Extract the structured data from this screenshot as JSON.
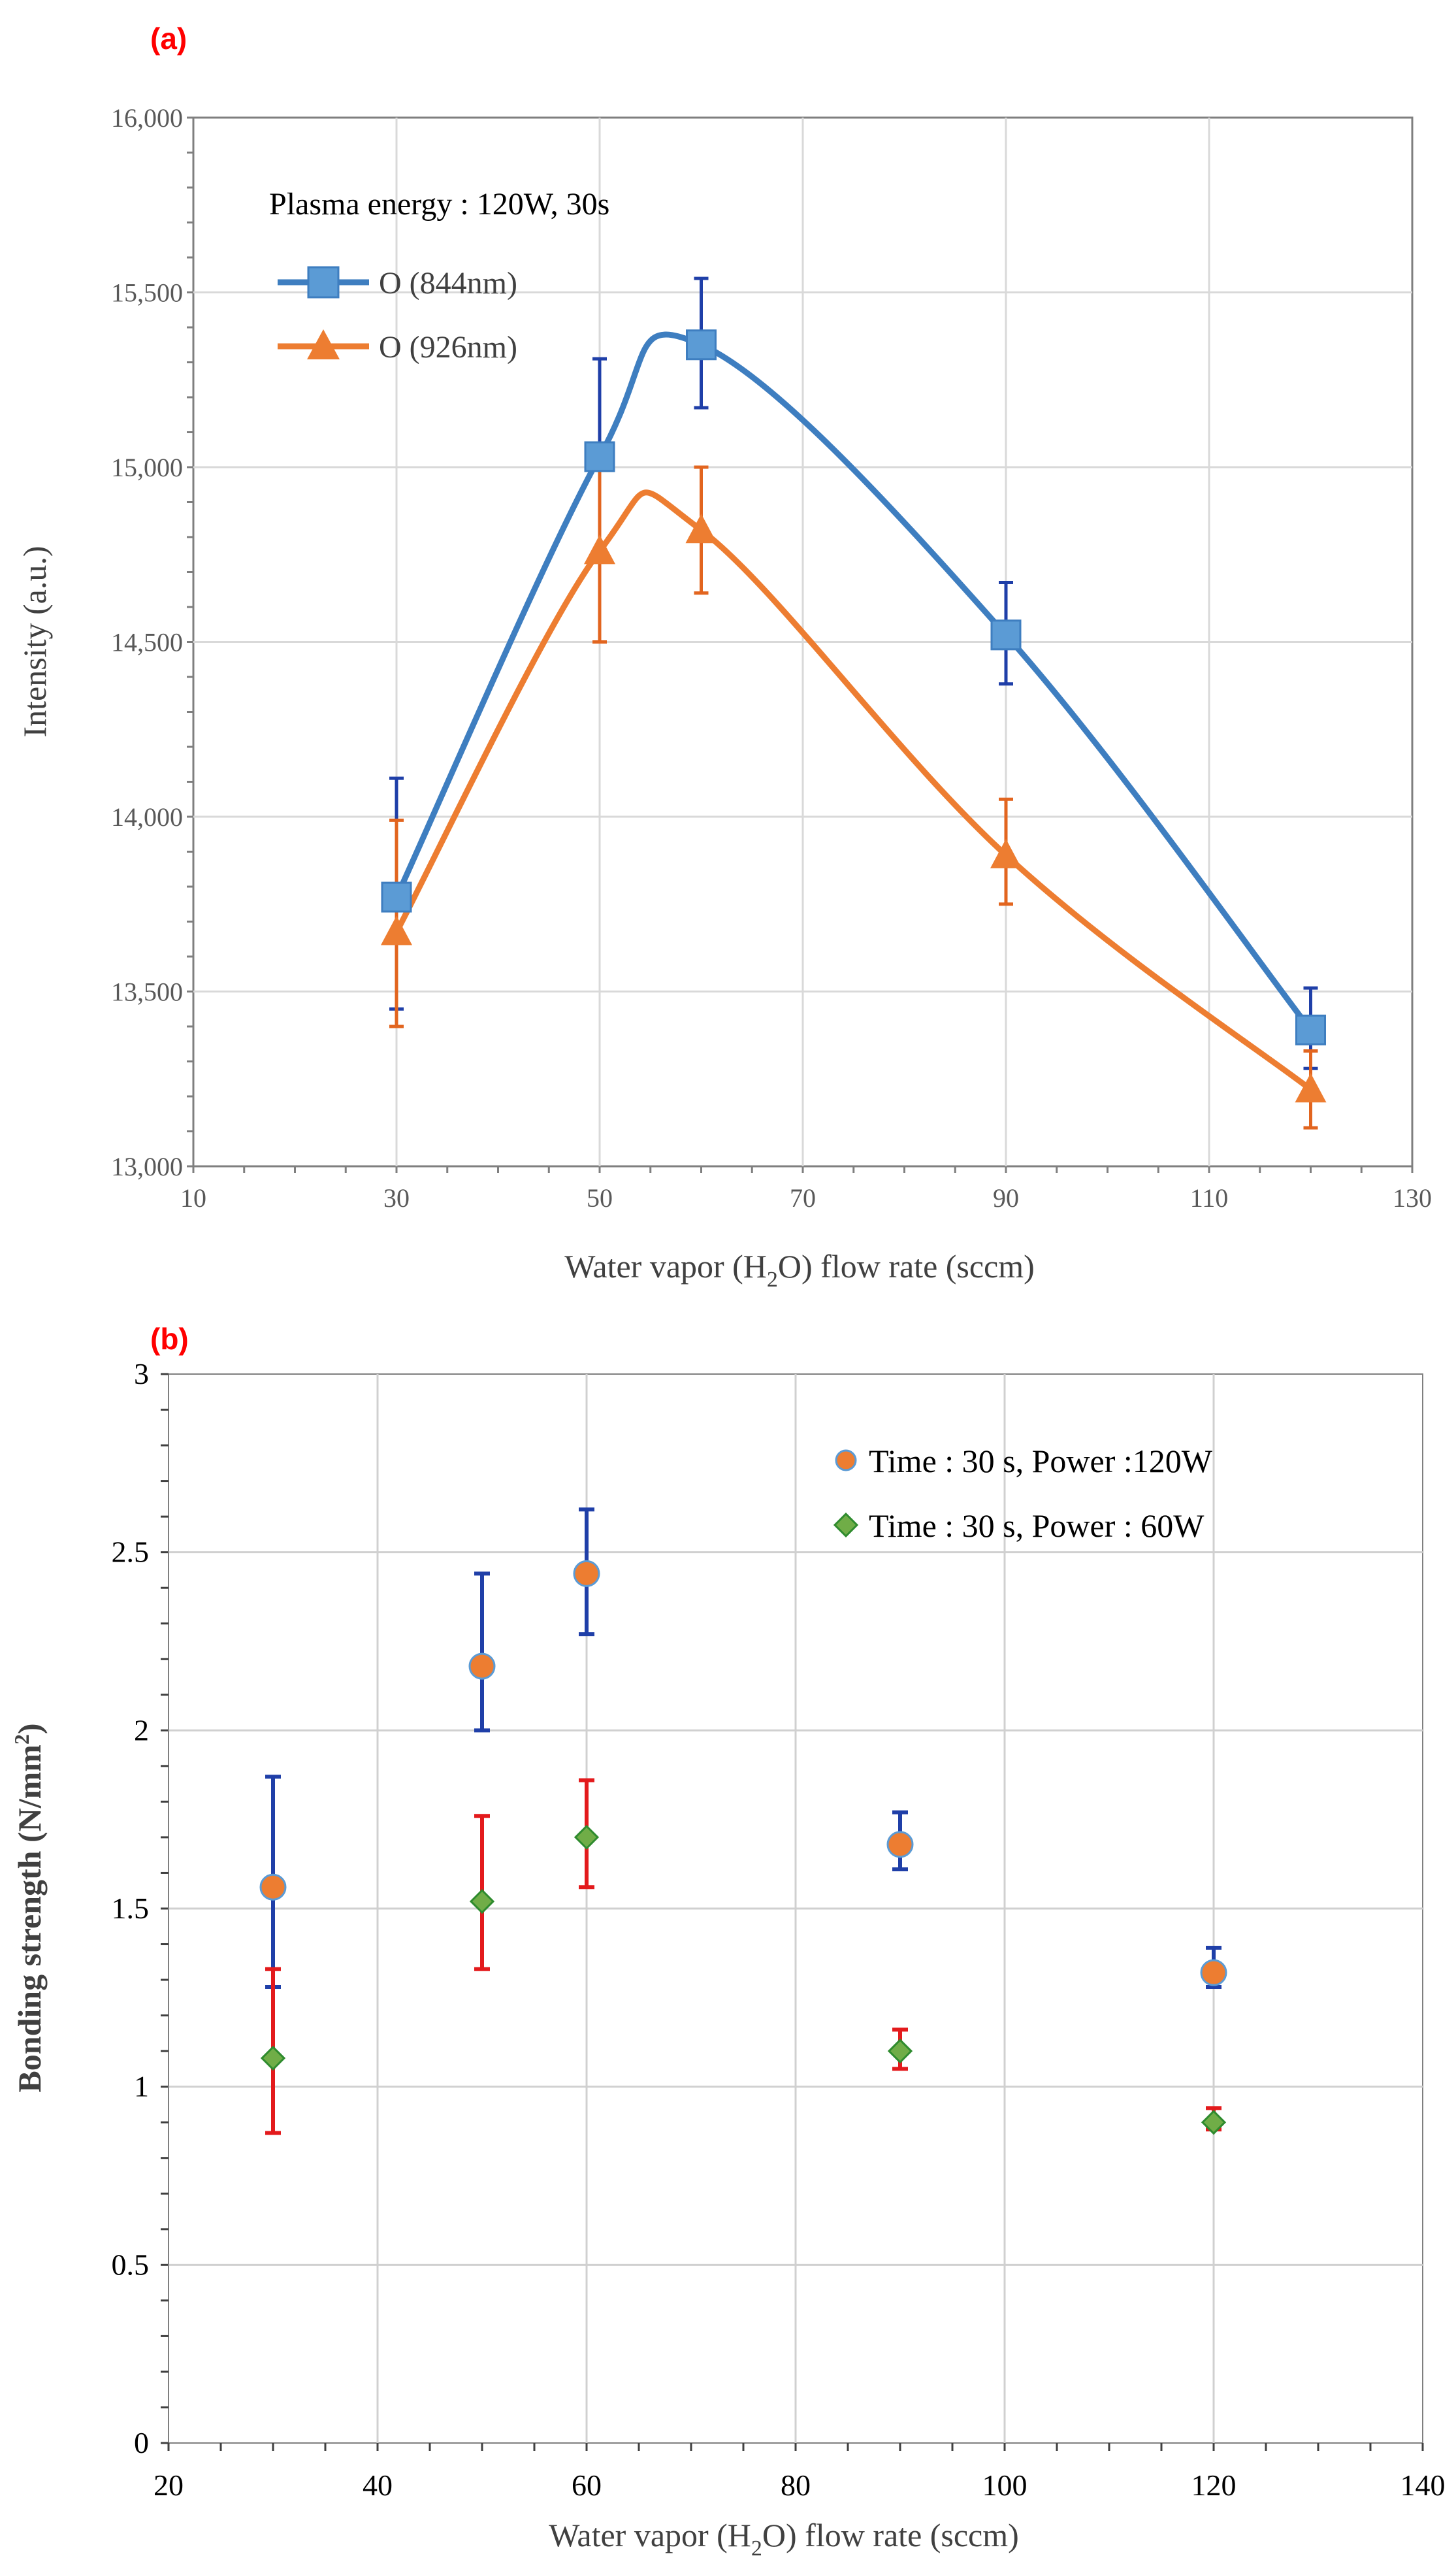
{
  "chart_data": [
    {
      "type": "line",
      "panel_label": "(a)",
      "xlabel_parts": [
        "Water vapor (H",
        "2",
        "O) flow rate  (sccm)"
      ],
      "ylabel": "Intensity (a.u.)",
      "xlim": [
        10,
        130
      ],
      "ylim": [
        13000,
        16000
      ],
      "xticks": [
        10,
        30,
        50,
        70,
        90,
        110,
        130
      ],
      "yticks": [
        13000,
        13500,
        14000,
        14500,
        15000,
        15500,
        16000
      ],
      "ytick_labels": [
        "13,000",
        "13,500",
        "14,000",
        "14,500",
        "15,000",
        "15,500",
        "16,000"
      ],
      "grid": true,
      "annotation": "Plasma energy : 120W, 30s",
      "series": [
        {
          "name": "O (844nm)",
          "marker": "square",
          "color": "#3E7EC0",
          "fill": "#5B9BD5",
          "error_color": "#1F3FA8",
          "x": [
            30,
            50,
            60,
            90,
            120
          ],
          "y": [
            13770,
            15030,
            15350,
            14520,
            13390
          ],
          "err_upper": [
            14110,
            15310,
            15540,
            14670,
            13510
          ],
          "err_lower": [
            13450,
            14750,
            15170,
            14380,
            13280
          ]
        },
        {
          "name": "O (926nm)",
          "marker": "triangle",
          "color": "#ED7D31",
          "fill": "#ED7D31",
          "error_color": "#E2651F",
          "x": [
            30,
            50,
            60,
            90,
            120
          ],
          "y": [
            13670,
            14760,
            14820,
            13890,
            13220
          ],
          "err_upper": [
            13990,
            15020,
            15000,
            14050,
            13330
          ],
          "err_lower": [
            13400,
            14500,
            14640,
            13750,
            13110
          ]
        }
      ]
    },
    {
      "type": "scatter",
      "panel_label": "(b)",
      "xlabel_parts": [
        "Water vapor (H",
        "2",
        "O) flow rate (sccm)"
      ],
      "ylabel_parts": [
        "Bonding strength (N/mm",
        "2",
        ")"
      ],
      "xlim": [
        20,
        140
      ],
      "ylim": [
        0,
        3
      ],
      "xticks": [
        20,
        40,
        60,
        80,
        100,
        120,
        140
      ],
      "yticks": [
        0,
        0.5,
        1,
        1.5,
        2,
        2.5,
        3
      ],
      "ytick_labels": [
        "0",
        "0.5",
        "1",
        "1.5",
        "2",
        "2.5",
        "3"
      ],
      "grid": true,
      "series": [
        {
          "name": "Time : 30 s, Power :120W",
          "marker": "circle",
          "fill": "#ED7D31",
          "stroke": "#5B9BD5",
          "error_color": "#1F3FA8",
          "x": [
            30,
            50,
            60,
            90,
            120
          ],
          "y": [
            1.56,
            2.18,
            2.44,
            1.68,
            1.32
          ],
          "err_upper": [
            1.87,
            2.44,
            2.62,
            1.77,
            1.39
          ],
          "err_lower": [
            1.28,
            2.0,
            2.27,
            1.61,
            1.28
          ]
        },
        {
          "name": "Time : 30 s, Power : 60W",
          "marker": "diamond",
          "fill": "#70AD47",
          "stroke": "#2E8B2E",
          "error_color": "#E31A1C",
          "x": [
            30,
            50,
            60,
            90,
            120
          ],
          "y": [
            1.08,
            1.52,
            1.7,
            1.1,
            0.9
          ],
          "err_upper": [
            1.33,
            1.76,
            1.86,
            1.16,
            0.94
          ],
          "err_lower": [
            0.87,
            1.33,
            1.56,
            1.05,
            0.88
          ]
        }
      ]
    }
  ]
}
